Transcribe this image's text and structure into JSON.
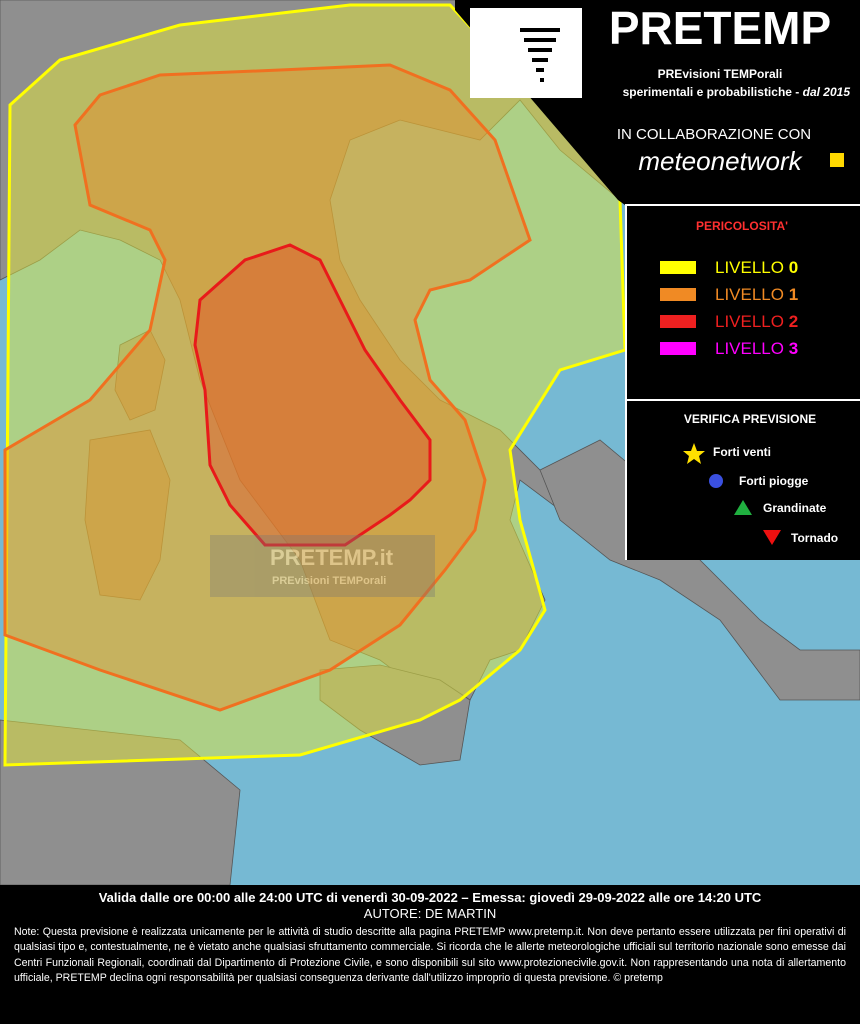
{
  "header": {
    "title": "PRETEMP",
    "subtitle": "PREvisioni TEMPorali",
    "tagline": "sperimentali e probabilistiche -",
    "tagline_em": "dal 2015"
  },
  "collaboration": {
    "label": "IN COLLABORAZIONE CON",
    "partner": "meteonetwork"
  },
  "legend": {
    "title": "PERICOLOSITA'",
    "levels": [
      {
        "label": "LIVELLO",
        "level": 0,
        "color": "#ffff00"
      },
      {
        "label": "LIVELLO",
        "level": 1,
        "color": "#f08a24"
      },
      {
        "label": "LIVELLO",
        "level": 2,
        "color": "#ee2020"
      },
      {
        "label": "LIVELLO",
        "level": 3,
        "color": "#ff00ff"
      }
    ]
  },
  "verification": {
    "title": "VERIFICA PREVISIONE",
    "items": [
      "Forti venti",
      "Forti piogge",
      "Grandinate",
      "Tornado"
    ]
  },
  "watermark": {
    "title": "PRETEMP.it",
    "subtitle": "PREvisioni TEMPorali"
  },
  "footer": {
    "validity": "Valida dalle ore 00:00 alle 24:00 UTC di venerdì 30-09-2022 – Emessa: giovedì 29-09-2022 alle ore 14:20 UTC",
    "author": "AUTORE: DE MARTIN",
    "note": "Note: Questa previsione è realizzata unicamente per le attività di studio descritte alla pagina PRETEMP www.pretemp.it. Non deve pertanto essere utilizzata per fini operativi di qualsiasi tipo e, contestualmente, ne è vietato anche qualsiasi sfruttamento commerciale. Si ricorda che le allerte meteorologiche ufficiali sul territorio nazionale sono emesse dai Centri Funzionali Regionali, coordinati dal Dipartimento di Protezione Civile, e sono disponibili sul sito www.protezionecivile.gov.it. Non rappresentando una nota di allertamento ufficiale, PRETEMP declina ogni responsabilità per qualsiasi conseguenza derivante dall'utilizzo improprio di questa previsione. © pretemp"
  }
}
